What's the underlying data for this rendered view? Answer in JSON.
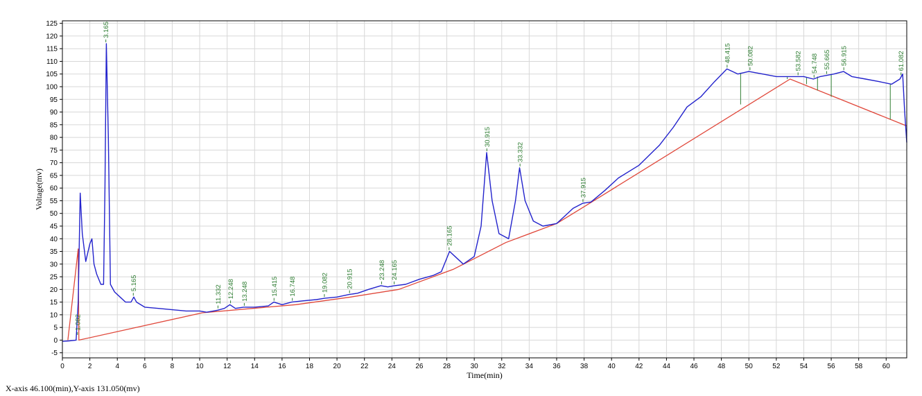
{
  "status_bar": {
    "cursor_readout": "X-axis 46.100(min),Y-axis 131.050(mv)"
  },
  "colors": {
    "signal": "#2222cc",
    "baseline": "#e0473a",
    "peak_marker": "#2e7d32",
    "grid": "#d7d7d7",
    "frame": "#000000"
  },
  "chart_data": {
    "type": "line",
    "title": "",
    "xlabel": "Time(min)",
    "ylabel": "Voltage(mv)",
    "xlim": [
      0,
      61.5
    ],
    "ylim": [
      -7,
      126
    ],
    "x_ticks": [
      0,
      2,
      4,
      6,
      8,
      10,
      12,
      14,
      16,
      18,
      20,
      22,
      24,
      26,
      28,
      30,
      32,
      34,
      36,
      38,
      40,
      42,
      44,
      46,
      48,
      50,
      52,
      54,
      56,
      58,
      60
    ],
    "y_ticks": [
      -5,
      0,
      5,
      10,
      15,
      20,
      25,
      30,
      35,
      40,
      45,
      50,
      55,
      60,
      65,
      70,
      75,
      80,
      85,
      90,
      95,
      100,
      105,
      110,
      115,
      120,
      125
    ],
    "grid": true,
    "series": [
      {
        "role": "signal",
        "x": [
          0,
          0.5,
          1.0,
          1.15,
          1.3,
          1.45,
          1.7,
          2.0,
          2.15,
          2.3,
          2.5,
          2.8,
          3.0,
          3.1,
          3.2,
          3.35,
          3.5,
          3.8,
          4.2,
          4.6,
          5.0,
          5.2,
          5.4,
          6,
          7,
          8,
          9,
          10,
          10.5,
          11,
          11.3,
          11.8,
          12.2,
          12.6,
          13.2,
          14,
          15,
          15.4,
          16,
          16.7,
          17.5,
          18.5,
          19.1,
          20,
          20.9,
          21.5,
          22.3,
          23.2,
          23.7,
          24.2,
          25,
          26,
          27,
          27.6,
          28.2,
          28.6,
          29.2,
          30,
          30.5,
          30.9,
          31.3,
          31.8,
          32.5,
          33.0,
          33.3,
          33.7,
          34.3,
          35,
          36,
          36.6,
          37.2,
          37.9,
          38.5,
          39.5,
          40.5,
          42,
          43.5,
          44.5,
          45.5,
          46.5,
          47.5,
          48.4,
          49.2,
          50,
          51,
          52,
          53.5,
          54,
          54.7,
          55.2,
          55.7,
          56.2,
          56.9,
          57.5,
          58.5,
          59.5,
          60.4,
          61.0,
          61.2,
          61.35,
          61.5
        ],
        "y": [
          -0.5,
          -0.3,
          0,
          15,
          58,
          42,
          31,
          38,
          40,
          30,
          26,
          22,
          22,
          60,
          117,
          80,
          22,
          19,
          17,
          15,
          15,
          17,
          15,
          13,
          12.5,
          12,
          11.5,
          11.5,
          11,
          11.5,
          11.8,
          12.5,
          14,
          12.5,
          13,
          13,
          13.5,
          15,
          14,
          15,
          15.5,
          16,
          16.5,
          17,
          18,
          18.5,
          20,
          21.5,
          21,
          21.5,
          22,
          24,
          25.5,
          27,
          35,
          33,
          30,
          33,
          45,
          74,
          55,
          42,
          40,
          55,
          68,
          55,
          47,
          45,
          46,
          49,
          52,
          54,
          54.5,
          59,
          64,
          69,
          77,
          84,
          92,
          96,
          102,
          107,
          105,
          106,
          105,
          104,
          104,
          104,
          103,
          104,
          104.5,
          105,
          106,
          104,
          103,
          102,
          101,
          103,
          105,
          90,
          78
        ]
      },
      {
        "role": "baseline",
        "x": [
          0.4,
          1.15,
          1.2,
          10.2,
          17,
          21,
          24.5,
          28.5,
          32.3,
          36,
          38.1,
          53,
          61.5
        ],
        "y": [
          0,
          36,
          0,
          10.8,
          14,
          17,
          20,
          28,
          38.5,
          46,
          53,
          103,
          84.5
        ]
      }
    ],
    "peaks": [
      {
        "label": "1.082",
        "x": 1.1,
        "y": 1.5
      },
      {
        "label": "3.165",
        "x": 3.165,
        "y": 117
      },
      {
        "label": "5.165",
        "x": 5.165,
        "y": 17
      },
      {
        "label": "11.332",
        "x": 11.332,
        "y": 12
      },
      {
        "label": "12.248",
        "x": 12.248,
        "y": 14
      },
      {
        "label": "13.248",
        "x": 13.248,
        "y": 13
      },
      {
        "label": "15.415",
        "x": 15.415,
        "y": 15
      },
      {
        "label": "16.748",
        "x": 16.748,
        "y": 15
      },
      {
        "label": "19.082",
        "x": 19.082,
        "y": 16.5
      },
      {
        "label": "20.915",
        "x": 20.915,
        "y": 18
      },
      {
        "label": "23.248",
        "x": 23.248,
        "y": 21.5
      },
      {
        "label": "24.165",
        "x": 24.165,
        "y": 21.5
      },
      {
        "label": "28.165",
        "x": 28.165,
        "y": 35
      },
      {
        "label": "30.915",
        "x": 30.915,
        "y": 74
      },
      {
        "label": "33.332",
        "x": 33.332,
        "y": 68
      },
      {
        "label": "37.915",
        "x": 37.915,
        "y": 54
      },
      {
        "label": "48.415",
        "x": 48.415,
        "y": 107
      },
      {
        "label": "50.082",
        "x": 50.082,
        "y": 106
      },
      {
        "label": "53.582",
        "x": 53.582,
        "y": 104
      },
      {
        "label": "54.748",
        "x": 54.748,
        "y": 103
      },
      {
        "label": "55.665",
        "x": 55.665,
        "y": 104.5
      },
      {
        "label": "56.915",
        "x": 56.915,
        "y": 106
      },
      {
        "label": "61.082",
        "x": 61.082,
        "y": 104
      }
    ],
    "peak_drops": [
      {
        "x": 49.4,
        "y_top": 105.5,
        "y_bottom": 93
      },
      {
        "x": 52.8,
        "y_top": 104,
        "y_bottom": 103
      },
      {
        "x": 54.2,
        "y_top": 103.5,
        "y_bottom": 101
      },
      {
        "x": 55.0,
        "y_top": 104,
        "y_bottom": 98.5
      },
      {
        "x": 56.0,
        "y_top": 105,
        "y_bottom": 96
      },
      {
        "x": 60.3,
        "y_top": 101,
        "y_bottom": 87
      }
    ]
  }
}
